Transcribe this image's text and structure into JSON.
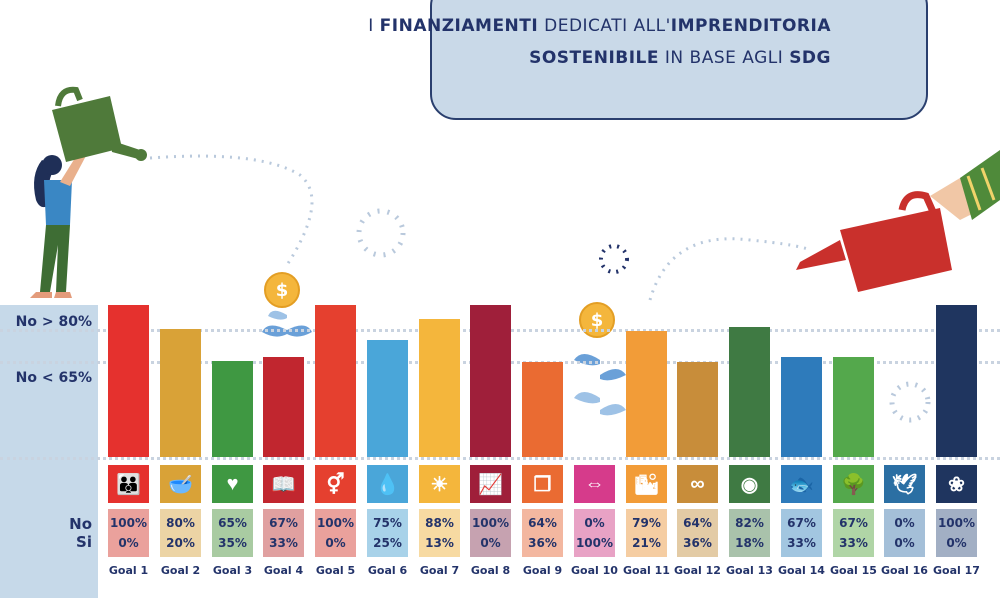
{
  "title": {
    "line1_prefix": "I",
    "line1_bold1": "FINANZIAMENTI",
    "line1_mid": "DEDICATI ALL'",
    "line1_bold2": "IMPRENDITORIA",
    "line2_bold1": "SOSTENIBILE",
    "line2_mid": "IN BASE AGLI",
    "line2_bold2": "SDG"
  },
  "row_labels": {
    "no80": "No > 80%",
    "no65": "No < 65%",
    "no": "No",
    "si": "Si"
  },
  "chart_data": {
    "type": "bar",
    "title": "I FINANZIAMENTI DEDICATI ALL'IMPRENDITORIA SOSTENIBILE IN BASE AGLI SDG",
    "categories": [
      "Goal 1",
      "Goal 2",
      "Goal 3",
      "Goal 4",
      "Goal 5",
      "Goal 6",
      "Goal 7",
      "Goal 8",
      "Goal 9",
      "Goal 10",
      "Goal 11",
      "Goal 12",
      "Goal 13",
      "Goal 14",
      "Goal 15",
      "Goal 16",
      "Goal 17"
    ],
    "series": [
      {
        "name": "No",
        "values": [
          100,
          80,
          65,
          67,
          100,
          75,
          88,
          100,
          64,
          0,
          79,
          64,
          82,
          67,
          67,
          0,
          100
        ]
      },
      {
        "name": "Si",
        "values": [
          0,
          20,
          35,
          33,
          0,
          25,
          13,
          0,
          36,
          100,
          21,
          36,
          18,
          33,
          33,
          0,
          0
        ]
      }
    ],
    "no_labels": [
      "100%",
      "80%",
      "65%",
      "67%",
      "100%",
      "75%",
      "88%",
      "100%",
      "64%",
      "0%",
      "79%",
      "64%",
      "82%",
      "67%",
      "67%",
      "0%",
      "100%"
    ],
    "si_labels": [
      "0%",
      "20%",
      "35%",
      "33%",
      "0%",
      "25%",
      "13%",
      "0%",
      "36%",
      "100%",
      "21%",
      "36%",
      "18%",
      "33%",
      "33%",
      "0%",
      "0%"
    ],
    "reference_lines": [
      80,
      65
    ],
    "colors": [
      "#e5243b",
      "#dda63a",
      "#4c9f38",
      "#c5192d",
      "#ff3a21",
      "#26bde2",
      "#fcc30b",
      "#a21942",
      "#fd6925",
      "#dd1367",
      "#fd9d24",
      "#bf8b2e",
      "#3f7e44",
      "#0a97d9",
      "#56c02b",
      "#00689d",
      "#19486a"
    ],
    "bar_colors_shown": [
      "#e5312e",
      "#d9a237",
      "#3f9842",
      "#c1262f",
      "#e5402f",
      "#4aa6d9",
      "#f4b63c",
      "#9f1f3a",
      "#ea6b32",
      "#d63b8b",
      "#f29c38",
      "#c88d3a",
      "#3f7a43",
      "#2e7bbb",
      "#54a84c",
      "#2b6fa3",
      "#1f355f"
    ],
    "pct_bg_shown": [
      "#eaa19c",
      "#ecd4a5",
      "#a9cba2",
      "#e0a0a0",
      "#eaa19c",
      "#a8d2e9",
      "#f7daa2",
      "#c6a2b0",
      "#f3b7a0",
      "#e8a2c5",
      "#f5cda2",
      "#e3cba5",
      "#a9c2ab",
      "#a2c6e0",
      "#b0d5a6",
      "#a4bfd8",
      "#a2afc4"
    ],
    "icons": [
      "people-icon",
      "bowl-icon",
      "heartbeat-icon",
      "book-icon",
      "gender-icon",
      "water-drop-icon",
      "sun-icon",
      "growth-chart-icon",
      "cubes-icon",
      "equality-icon",
      "city-icon",
      "infinity-icon",
      "eye-globe-icon",
      "fish-icon",
      "tree-icon",
      "dove-icon",
      "rings-icon"
    ],
    "icon_glyphs": [
      "👪",
      "🥣",
      "♥",
      "📖",
      "⚥",
      "💧",
      "☀",
      "📈",
      "❒",
      "⇔",
      "🏙",
      "∞",
      "◉",
      "🐟",
      "🌳",
      "🕊",
      "❀"
    ]
  }
}
